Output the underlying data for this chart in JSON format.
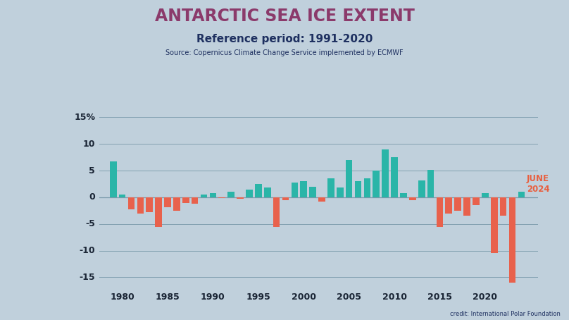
{
  "title": "ANTARCTIC SEA ICE EXTENT",
  "subtitle": "Reference period: 1991-2020",
  "source": "Source: Copernicus Climate Change Service implemented by ECMWF",
  "credit": "credit: International Polar Foundation",
  "annotation_line1": "JUNE",
  "annotation_line2": "2024",
  "title_color": "#8b3a6b",
  "subtitle_color": "#1e3060",
  "source_color": "#1e3060",
  "annotation_color": "#e86040",
  "positive_color": "#2ab5a8",
  "negative_color": "#e8614c",
  "bg_color_top": "#c5d5e0",
  "bg_color_bottom": "#b0c5d0",
  "years": [
    1979,
    1980,
    1981,
    1982,
    1983,
    1984,
    1985,
    1986,
    1987,
    1988,
    1989,
    1990,
    1991,
    1992,
    1993,
    1994,
    1995,
    1996,
    1997,
    1998,
    1999,
    2000,
    2001,
    2002,
    2003,
    2004,
    2005,
    2006,
    2007,
    2008,
    2009,
    2010,
    2011,
    2012,
    2013,
    2014,
    2015,
    2016,
    2017,
    2018,
    2019,
    2020,
    2021,
    2022,
    2023,
    2024
  ],
  "values": [
    6.8,
    0.5,
    -2.2,
    -3.0,
    -2.8,
    -5.5,
    -1.8,
    -2.5,
    -1.0,
    -1.2,
    0.5,
    0.8,
    -0.2,
    1.0,
    -0.3,
    1.5,
    2.5,
    1.8,
    -5.5,
    -0.5,
    2.8,
    3.0,
    2.0,
    -0.8,
    3.5,
    1.8,
    7.0,
    3.0,
    3.5,
    5.0,
    9.0,
    7.5,
    0.8,
    -0.5,
    3.2,
    5.2,
    -5.5,
    -3.0,
    -2.5,
    -3.5,
    -1.5,
    0.8,
    -10.5,
    -3.5,
    -16.0,
    1.0
  ],
  "ylim": [
    -17,
    16
  ],
  "yticks": [
    -15,
    -10,
    -5,
    0,
    5,
    10
  ],
  "ytick_top": 15,
  "xlabel_years": [
    1980,
    1985,
    1990,
    1995,
    2000,
    2005,
    2010,
    2015,
    2020
  ],
  "grid_color": "#7899aa",
  "tick_label_color": "#1a2535",
  "bar_width": 0.75,
  "xlim_left": 1977.5,
  "xlim_right": 2025.8
}
